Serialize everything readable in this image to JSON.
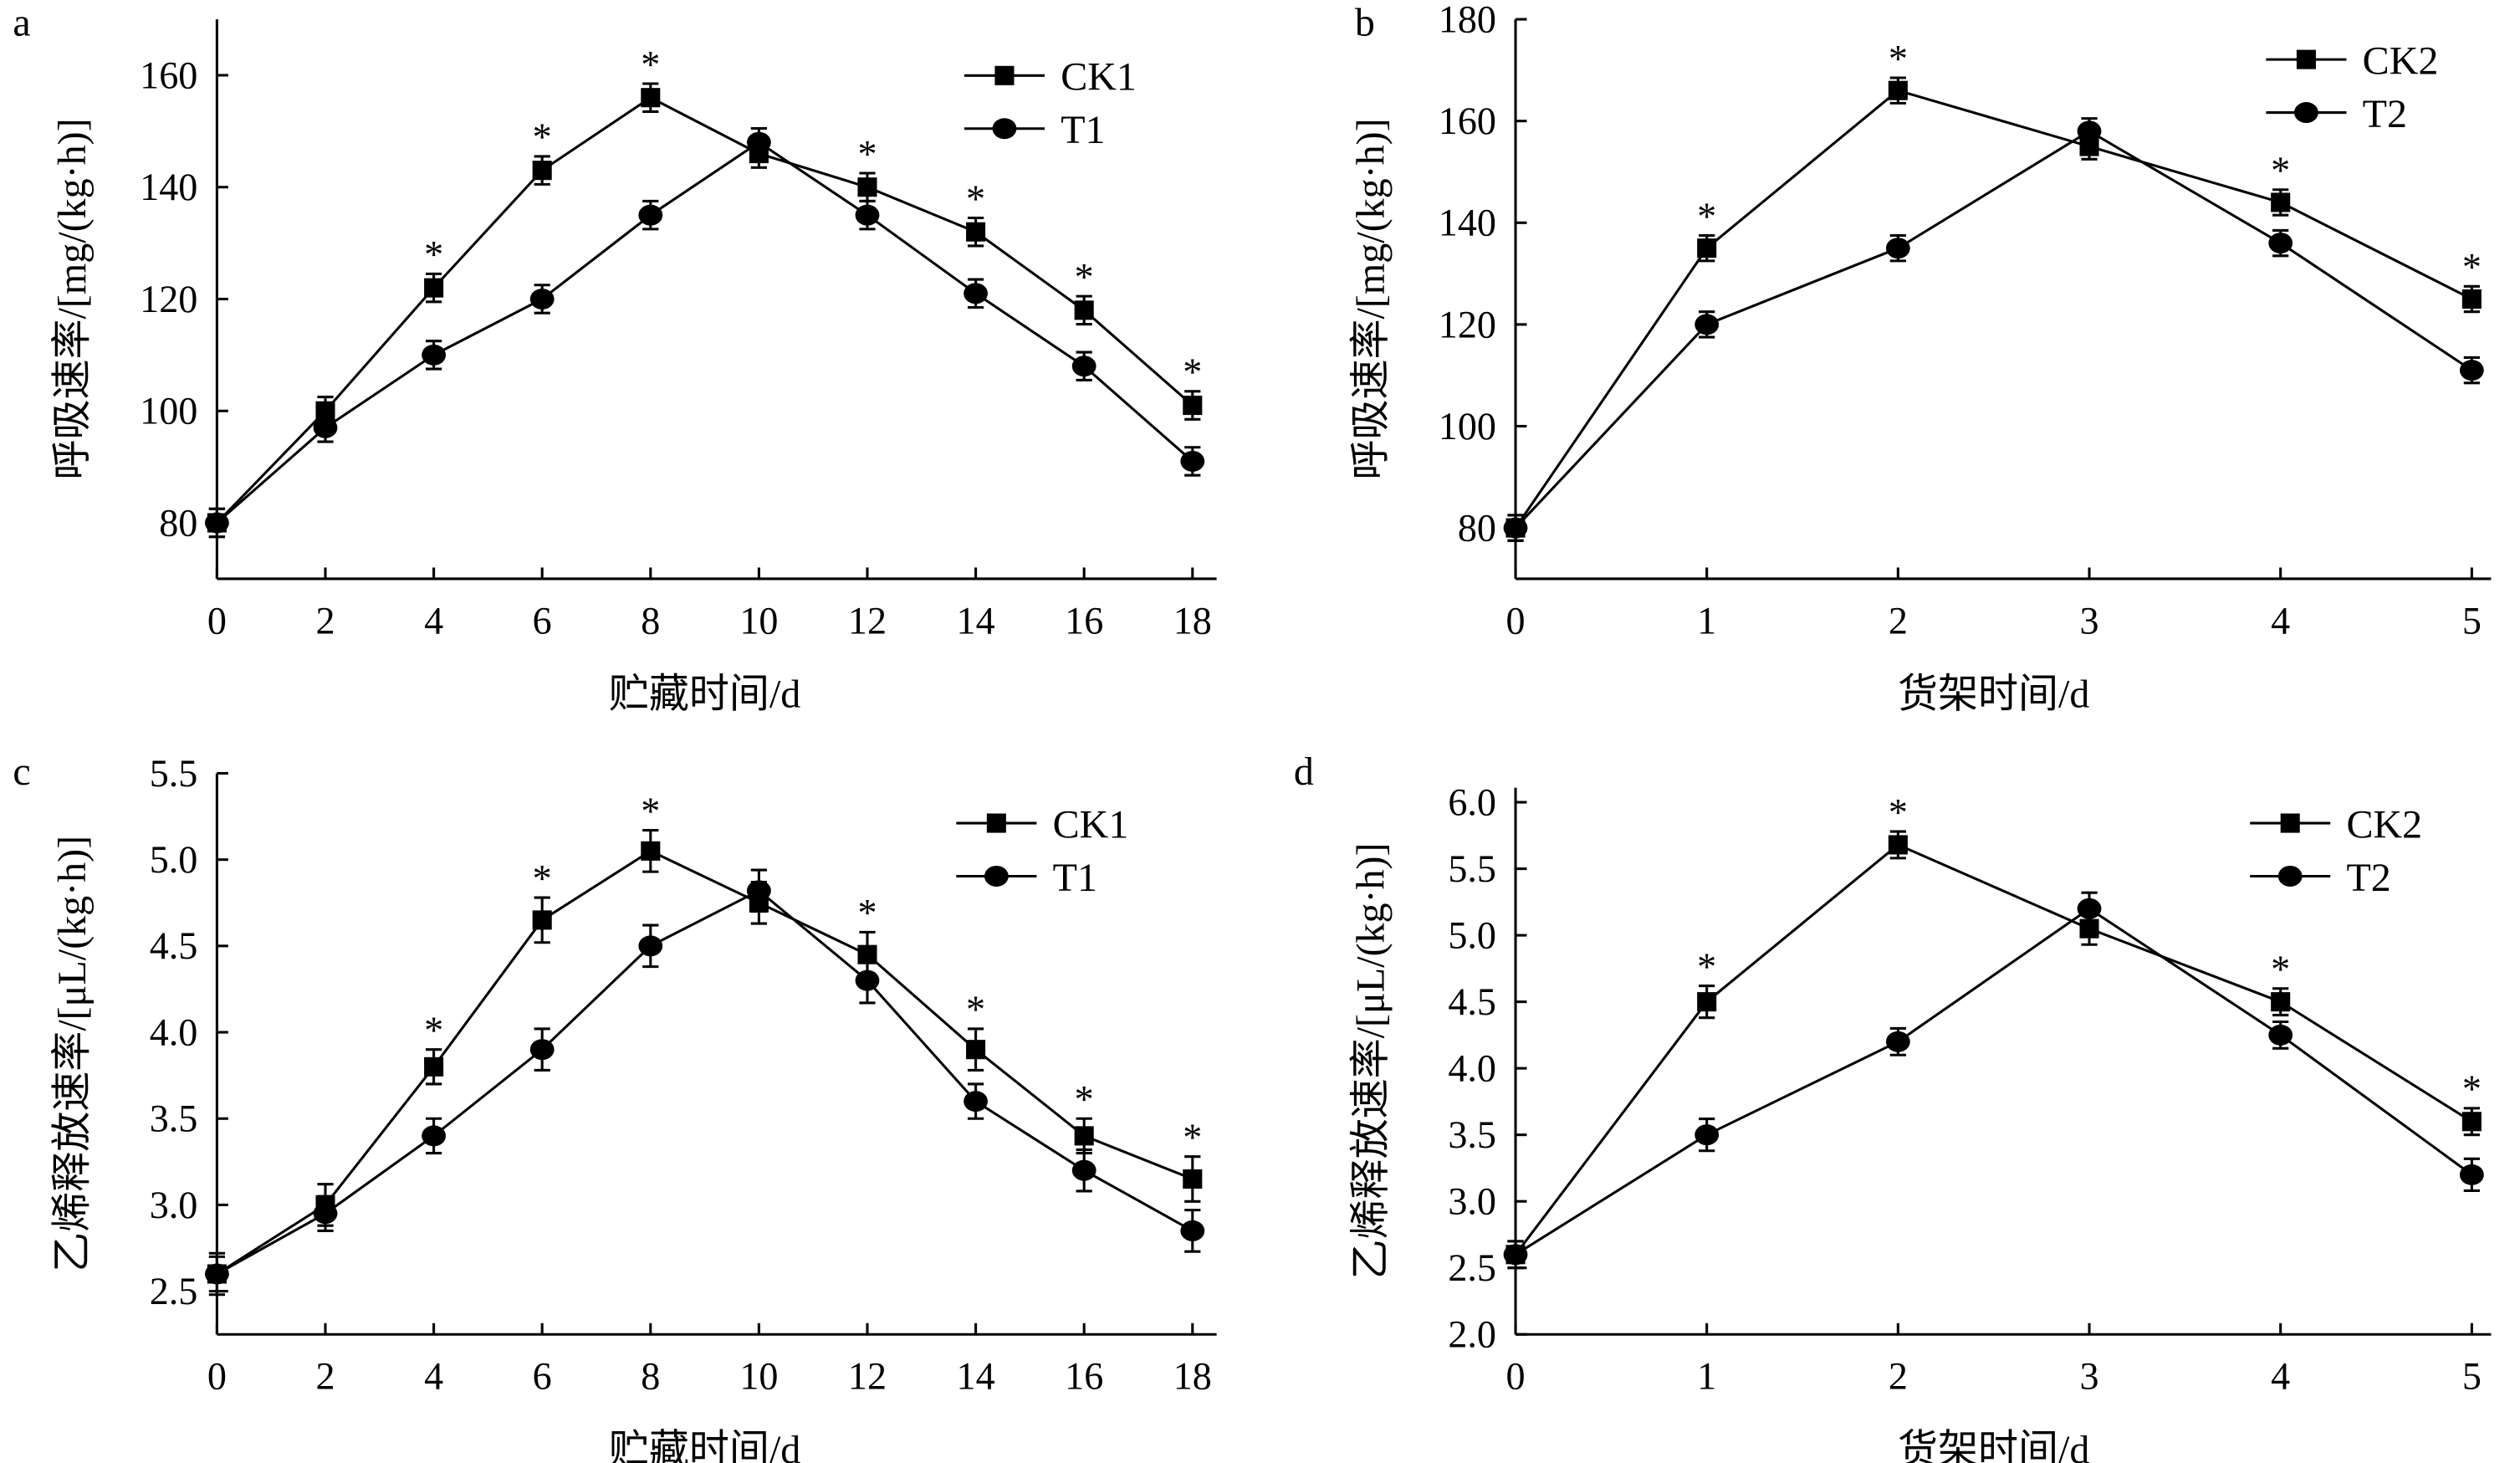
{
  "chart_data": [
    {
      "panel": "a",
      "type": "line",
      "xlabel": "贮藏时间/d",
      "ylabel": "呼吸速率/[mg/(kg·h)]",
      "x": [
        0,
        2,
        4,
        6,
        8,
        10,
        12,
        14,
        16,
        18
      ],
      "xticks": [
        0,
        2,
        4,
        6,
        8,
        10,
        12,
        14,
        16,
        18
      ],
      "yticks": [
        80,
        100,
        120,
        140,
        160
      ],
      "xlim": [
        0,
        18
      ],
      "ylim": [
        70,
        170
      ],
      "grid": false,
      "legend": "top-right",
      "series": [
        {
          "name": "CK1",
          "marker": "square",
          "values": [
            80,
            100,
            122,
            143,
            156,
            146,
            140,
            132,
            118,
            101
          ],
          "error": [
            2.5,
            2.5,
            2.5,
            2.5,
            2.5,
            2.5,
            2.5,
            2.5,
            2.5,
            2.5
          ]
        },
        {
          "name": "T1",
          "marker": "circle",
          "values": [
            80,
            97,
            110,
            120,
            135,
            148,
            135,
            121,
            108,
            91
          ],
          "error": [
            2.5,
            2.5,
            2.5,
            2.5,
            2.5,
            2.5,
            2.5,
            2.5,
            2.5,
            2.5
          ]
        }
      ],
      "significance_marker": "*",
      "significant_x": [
        4,
        6,
        8,
        12,
        14,
        16,
        18
      ]
    },
    {
      "panel": "b",
      "type": "line",
      "xlabel": "货架时间/d",
      "ylabel": "呼吸速率/[mg/(kg·h)]",
      "x": [
        0,
        1,
        2,
        3,
        4,
        5
      ],
      "xticks": [
        0,
        1,
        2,
        3,
        4,
        5
      ],
      "yticks": [
        80,
        100,
        120,
        140,
        160,
        180
      ],
      "xlim": [
        0,
        5
      ],
      "ylim": [
        70,
        180
      ],
      "grid": false,
      "legend": "top-right",
      "series": [
        {
          "name": "CK2",
          "marker": "square",
          "values": [
            80,
            135,
            166,
            155,
            144,
            125
          ],
          "error": [
            2.5,
            2.5,
            2.5,
            2.5,
            2.5,
            2.5
          ]
        },
        {
          "name": "T2",
          "marker": "circle",
          "values": [
            80,
            120,
            135,
            158,
            136,
            111
          ],
          "error": [
            2.5,
            2.5,
            2.5,
            2.5,
            2.5,
            2.5
          ]
        }
      ],
      "significance_marker": "*",
      "significant_x": [
        1,
        2,
        4,
        5
      ]
    },
    {
      "panel": "c",
      "type": "line",
      "xlabel": "贮藏时间/d",
      "ylabel": "乙烯释放速率/[μL/(kg·h)]",
      "x": [
        0,
        2,
        4,
        6,
        8,
        10,
        12,
        14,
        16,
        18
      ],
      "xticks": [
        0,
        2,
        4,
        6,
        8,
        10,
        12,
        14,
        16,
        18
      ],
      "yticks": [
        "2.5",
        "3.0",
        "3.5",
        "4.0",
        "4.5",
        "5.0",
        "5.5"
      ],
      "xlim": [
        0,
        18
      ],
      "ylim": [
        2.25,
        5.5
      ],
      "grid": false,
      "legend": "top-right",
      "series": [
        {
          "name": "CK1",
          "marker": "square",
          "values": [
            2.6,
            3.0,
            3.8,
            4.65,
            5.05,
            4.75,
            4.45,
            3.9,
            3.4,
            3.15
          ],
          "error": [
            0.12,
            0.12,
            0.1,
            0.13,
            0.12,
            0.12,
            0.13,
            0.12,
            0.1,
            0.13
          ]
        },
        {
          "name": "T1",
          "marker": "circle",
          "values": [
            2.6,
            2.95,
            3.4,
            3.9,
            4.5,
            4.82,
            4.3,
            3.6,
            3.2,
            2.85
          ],
          "error": [
            0.1,
            0.1,
            0.1,
            0.12,
            0.12,
            0.12,
            0.13,
            0.1,
            0.12,
            0.12
          ]
        }
      ],
      "significance_marker": "*",
      "significant_x": [
        4,
        6,
        8,
        12,
        14,
        16,
        18
      ]
    },
    {
      "panel": "d",
      "type": "line",
      "xlabel": "货架时间/d",
      "ylabel": "乙烯释放速率/[μL/(kg·h)]",
      "x": [
        0,
        1,
        2,
        3,
        4,
        5
      ],
      "xticks": [
        0,
        1,
        2,
        3,
        4,
        5
      ],
      "yticks": [
        "2.0",
        "2.5",
        "3.0",
        "3.5",
        "4.0",
        "4.5",
        "5.0",
        "5.5",
        "6.0"
      ],
      "xlim": [
        0,
        5
      ],
      "ylim": [
        2.0,
        6.0
      ],
      "grid": false,
      "legend": "top-right",
      "series": [
        {
          "name": "CK2",
          "marker": "square",
          "values": [
            2.6,
            4.5,
            5.68,
            5.05,
            4.5,
            3.6
          ],
          "error": [
            0.1,
            0.12,
            0.1,
            0.12,
            0.1,
            0.1
          ]
        },
        {
          "name": "T2",
          "marker": "circle",
          "values": [
            2.6,
            3.5,
            4.2,
            5.2,
            4.25,
            3.2
          ],
          "error": [
            0.1,
            0.12,
            0.1,
            0.12,
            0.1,
            0.12
          ]
        }
      ],
      "significance_marker": "*",
      "significant_x": [
        1,
        2,
        4,
        5
      ]
    }
  ]
}
